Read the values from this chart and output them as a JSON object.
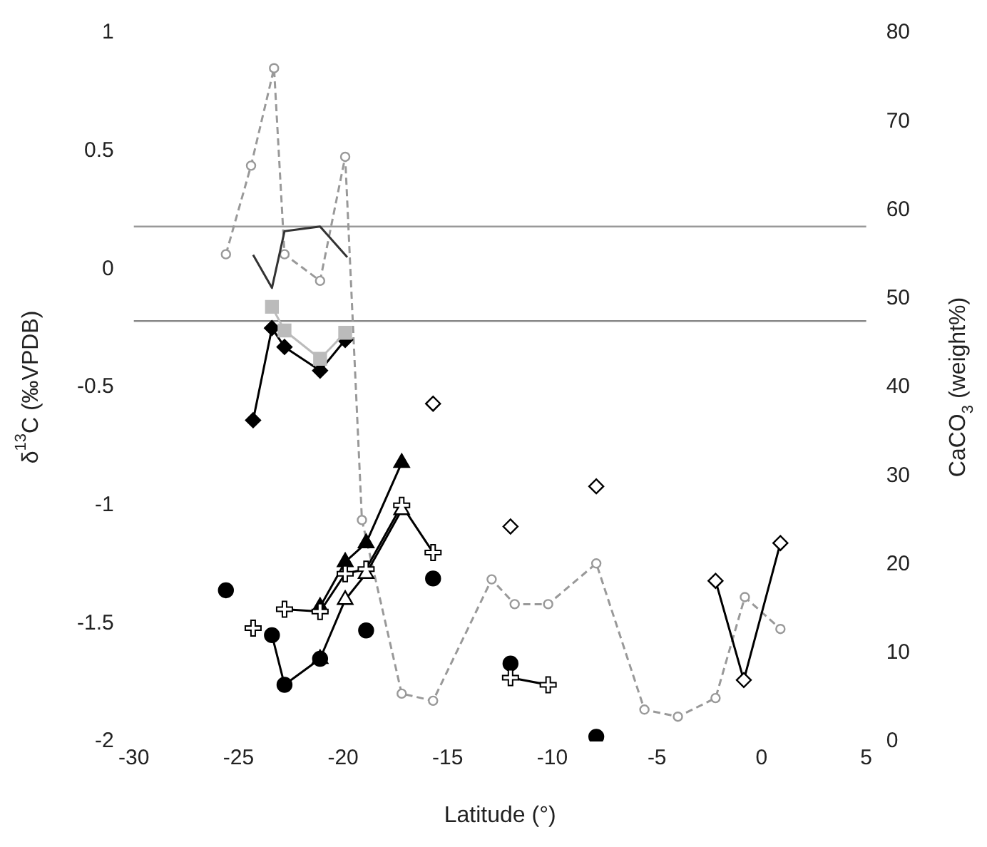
{
  "chart_data": {
    "type": "line",
    "xlabel": "Latitude (°)",
    "ylabel": "δ$^{13}$C (‰VPDB)",
    "y2label": "CaCO$_{3}$ (weight%)",
    "xlim": [
      -30,
      5
    ],
    "xticks": [
      -30,
      -25,
      -20,
      -15,
      -10,
      -5,
      0,
      5
    ],
    "ylim": [
      -2,
      1
    ],
    "yticks": [
      -2,
      -1.5,
      -1,
      -0.5,
      0,
      0.5,
      1
    ],
    "y2lim": [
      0,
      80
    ],
    "y2ticks": [
      0,
      10,
      20,
      30,
      40,
      50,
      60,
      70,
      80
    ],
    "grid": false,
    "legend": false,
    "ref_lines": [
      {
        "axis": "y",
        "value": 0.18,
        "color": "#999999"
      },
      {
        "axis": "y",
        "value": -0.22,
        "color": "#888888"
      }
    ],
    "series": [
      {
        "axis": "y2",
        "color": "#999999",
        "marker": "circle",
        "line_style": "dashed",
        "x": [
          -25.6,
          -24.4,
          -23.3,
          -22.8,
          -21.1,
          -19.9,
          -19.1,
          -17.2,
          -15.7,
          -12.9,
          -11.8,
          -10.2,
          -7.9,
          -5.6,
          -4.0,
          -2.2,
          -0.8,
          0.9
        ],
        "values": [
          55,
          65,
          76,
          55,
          52,
          66,
          25,
          5.4,
          4.6,
          18.3,
          15.5,
          15.5,
          20.1,
          3.6,
          2.8,
          4.9,
          16.3,
          12.7
        ]
      },
      {
        "color": "#333333",
        "marker": "none",
        "line_style": "solid",
        "x": [
          -24.3,
          -23.4,
          -22.8,
          -21.1,
          -19.8
        ],
        "values": [
          0.06,
          -0.08,
          0.16,
          0.18,
          0.05
        ]
      },
      {
        "color": "#bbbbbb",
        "marker": "square",
        "line_style": "solid",
        "x": [
          -23.4,
          -22.8,
          -21.1,
          -19.9
        ],
        "values": [
          -0.16,
          -0.26,
          -0.38,
          -0.27
        ]
      },
      {
        "type": "line",
        "color": "#000000",
        "marker": "diamond",
        "line_style": "solid",
        "x": [
          -24.3,
          -23.4,
          -22.8,
          -21.1,
          -19.9
        ],
        "values": [
          -0.64,
          -0.25,
          -0.33,
          -0.43,
          -0.3
        ]
      },
      {
        "type": "scatter",
        "color": "#ffffff",
        "marker": "diamond",
        "x": [
          -15.7,
          -12.0,
          -7.9
        ],
        "values": [
          -0.57,
          -1.09,
          -0.92
        ]
      },
      {
        "type": "line",
        "color": "#ffffff",
        "marker": "diamond",
        "line_style": "solid",
        "x": [
          -2.2,
          -0.85,
          0.9
        ],
        "values": [
          -1.32,
          -1.74,
          -1.16
        ]
      },
      {
        "type": "line",
        "color": "#000000",
        "marker": "triangle",
        "line_style": "solid",
        "x": [
          -21.1,
          -19.9,
          -18.9,
          -17.2
        ],
        "values": [
          -1.43,
          -1.24,
          -1.16,
          -0.82
        ]
      },
      {
        "type": "line",
        "color": "#ffffff",
        "marker": "triangle",
        "line_style": "solid",
        "x": [
          -21.1,
          -19.9,
          -18.9,
          -17.2
        ],
        "values": [
          -1.65,
          -1.4,
          -1.29,
          -1.02
        ]
      },
      {
        "type": "scatter",
        "color": "#ffffff",
        "marker": "cross",
        "x": [
          -24.3
        ],
        "values": [
          -1.52
        ]
      },
      {
        "type": "line",
        "color": "#ffffff",
        "marker": "cross",
        "line_style": "solid",
        "x": [
          -22.8,
          -21.1,
          -19.9,
          -18.9,
          -17.2,
          -15.7
        ],
        "values": [
          -1.44,
          -1.45,
          -1.29,
          -1.27,
          -1.0,
          -1.2
        ]
      },
      {
        "type": "line",
        "color": "#ffffff",
        "marker": "cross",
        "line_style": "solid",
        "x": [
          -12.0,
          -10.2
        ],
        "values": [
          -1.73,
          -1.76
        ]
      },
      {
        "type": "line",
        "color": "#000000",
        "marker": "circle",
        "line_style": "solid",
        "x": [
          -23.4,
          -22.8,
          -21.1
        ],
        "values": [
          -1.55,
          -1.76,
          -1.65
        ]
      },
      {
        "type": "scatter",
        "color": "#000000",
        "marker": "circle",
        "x": [
          -25.6,
          -18.9,
          -15.7,
          -12.0,
          -7.9
        ],
        "values": [
          -1.36,
          -1.53,
          -1.31,
          -1.67,
          -1.98
        ]
      }
    ]
  }
}
